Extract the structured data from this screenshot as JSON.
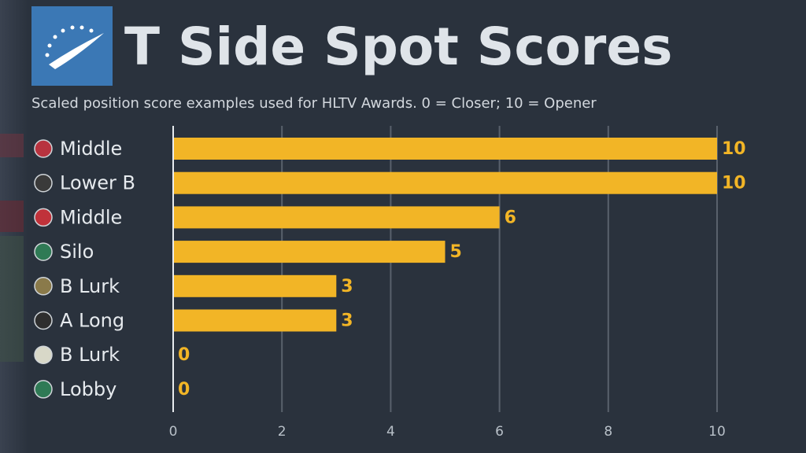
{
  "chart_data": {
    "type": "bar",
    "orientation": "horizontal",
    "title": "T Side Spot Scores",
    "subtitle": "Scaled position score examples used for HLTV Awards. 0 = Closer; 10 = Opener",
    "categories": [
      "Middle",
      "Lower B",
      "Middle",
      "Silo",
      "B Lurk",
      "A Long",
      "B Lurk",
      "Lobby"
    ],
    "values": [
      10,
      10,
      6,
      5,
      3,
      3,
      0,
      0
    ],
    "color": "#f2b526",
    "xlim": [
      0,
      10
    ],
    "xticks": [
      0,
      2,
      4,
      6,
      8,
      10
    ],
    "grid": true
  }
}
